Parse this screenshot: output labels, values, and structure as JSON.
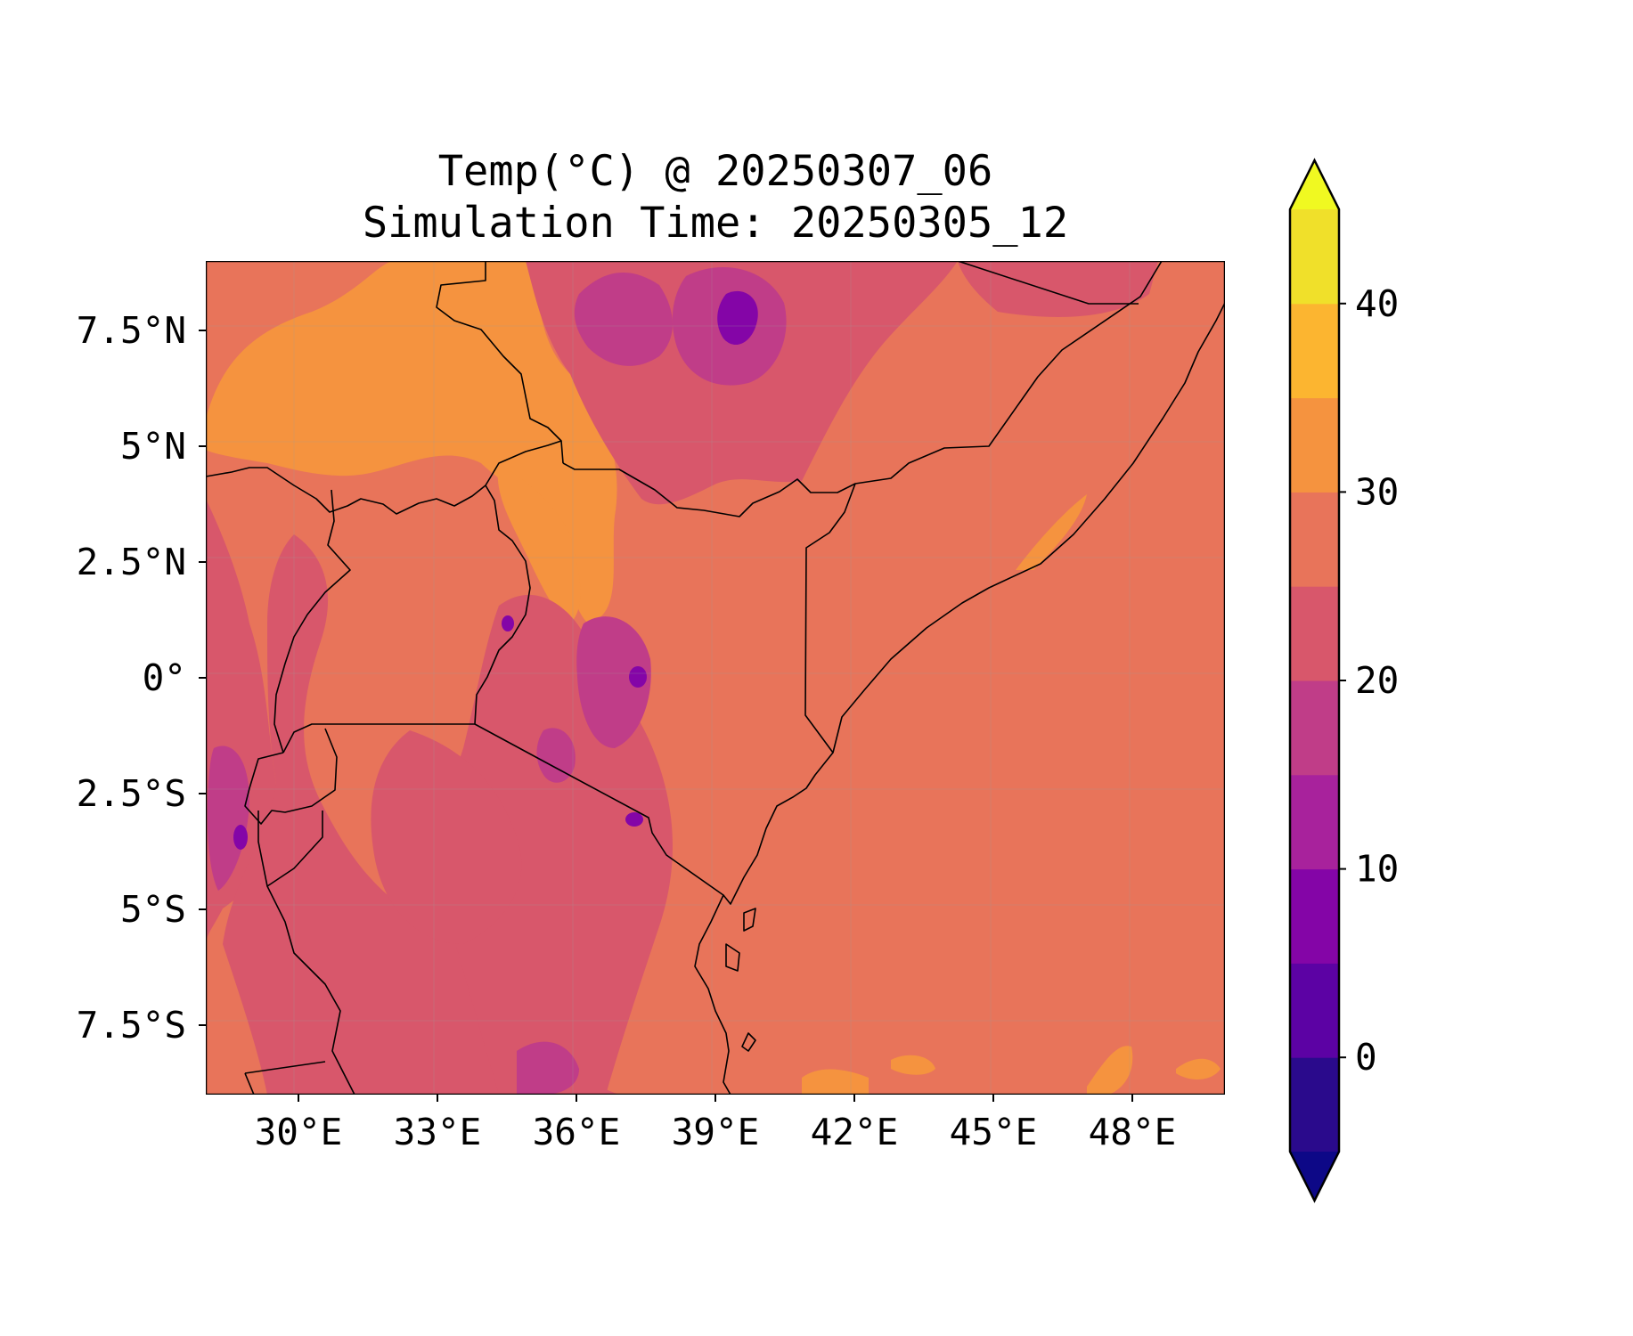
{
  "title_line1": "Temp(°C) @ 20250307_06",
  "title_line2": "Simulation Time: 20250305_12",
  "map": {
    "lon_range": [
      28.0,
      50.0
    ],
    "lat_range": [
      -9.0,
      9.0
    ],
    "x_ticks": [
      {
        "lon": 30,
        "label": "30°E"
      },
      {
        "lon": 33,
        "label": "33°E"
      },
      {
        "lon": 36,
        "label": "36°E"
      },
      {
        "lon": 39,
        "label": "39°E"
      },
      {
        "lon": 42,
        "label": "42°E"
      },
      {
        "lon": 45,
        "label": "45°E"
      },
      {
        "lon": 48,
        "label": "48°E"
      }
    ],
    "y_ticks": [
      {
        "lat": 7.5,
        "label": "7.5°N"
      },
      {
        "lat": 5,
        "label": "5°N"
      },
      {
        "lat": 2.5,
        "label": "2.5°N"
      },
      {
        "lat": 0,
        "label": "0°"
      },
      {
        "lat": -2.5,
        "label": "2.5°S"
      },
      {
        "lat": -5,
        "label": "5°S"
      },
      {
        "lat": -7.5,
        "label": "7.5°S"
      }
    ],
    "gridlines": true,
    "background_color": "#e8745a"
  },
  "colorbar": {
    "range": [
      -5,
      45
    ],
    "extend": "both",
    "ticks": [
      {
        "value": 0,
        "label": "0"
      },
      {
        "value": 10,
        "label": "10"
      },
      {
        "value": 20,
        "label": "20"
      },
      {
        "value": 30,
        "label": "30"
      },
      {
        "value": 40,
        "label": "40"
      }
    ],
    "bins": [
      {
        "from": -5,
        "to": 0,
        "color": "#2a0a8c"
      },
      {
        "from": 0,
        "to": 5,
        "color": "#5c02a4"
      },
      {
        "from": 5,
        "to": 10,
        "color": "#8405a7"
      },
      {
        "from": 10,
        "to": 15,
        "color": "#a8229c"
      },
      {
        "from": 15,
        "to": 20,
        "color": "#c03d88"
      },
      {
        "from": 20,
        "to": 25,
        "color": "#d8576b"
      },
      {
        "from": 25,
        "to": 30,
        "color": "#e8745a"
      },
      {
        "from": 30,
        "to": 35,
        "color": "#f5933f"
      },
      {
        "from": 35,
        "to": 40,
        "color": "#fcb530"
      },
      {
        "from": 40,
        "to": 45,
        "color": "#f0e02a"
      }
    ],
    "under_color": "#0d0887",
    "over_color": "#f0f921"
  },
  "chart_data": {
    "type": "heatmap",
    "variable": "Temp(°C)",
    "valid_time": "20250307_06",
    "simulation_time": "20250305_12",
    "lon_range": [
      28.0,
      50.0
    ],
    "lat_range": [
      -9.0,
      9.0
    ],
    "color_scale": "plasma",
    "levels": [
      -5,
      0,
      5,
      10,
      15,
      20,
      25,
      30,
      35,
      40,
      45
    ],
    "grid": true
  }
}
